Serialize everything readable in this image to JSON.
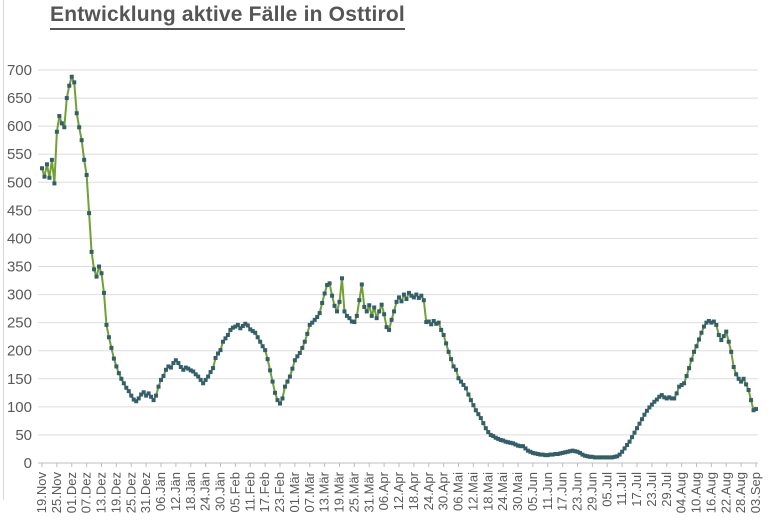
{
  "chart_data": {
    "type": "line",
    "title": "Entwicklung aktive Fälle in Osttirol",
    "series_name": "aktive Fälle",
    "x_unit": "day",
    "x_first_date": "19.Nov",
    "x_last_date": "03.Sep",
    "x_label_every_n_points": 6,
    "x_labels": [
      "19.Nov",
      "25.Nov",
      "01.Dez",
      "07.Dez",
      "13.Dez",
      "19.Dez",
      "25.Dez",
      "31.Dez",
      "06.Jän",
      "12.Jän",
      "18.Jän",
      "24.Jän",
      "30.Jän",
      "05.Feb",
      "11.Feb",
      "17.Feb",
      "23.Feb",
      "01.Mär",
      "07.Mär",
      "13.Mär",
      "19.Mär",
      "25.Mär",
      "31.Mär",
      "06.Apr",
      "12.Apr",
      "18.Apr",
      "24.Apr",
      "30.Apr",
      "06.Mai",
      "12.Mai",
      "18.Mai",
      "24.Mai",
      "30.Mai",
      "05.Jun",
      "11.Jun",
      "17.Jun",
      "23.Jun",
      "29.Jun",
      "05.Jul",
      "11.Jul",
      "17.Jul",
      "23.Jul",
      "29.Jul",
      "04.Aug",
      "10.Aug",
      "16.Aug",
      "22.Aug",
      "28.Aug",
      "03.Sep"
    ],
    "yticks": [
      0,
      50,
      100,
      150,
      200,
      250,
      300,
      350,
      400,
      450,
      500,
      550,
      600,
      650,
      700
    ],
    "ylim": [
      0,
      700
    ],
    "grid": true,
    "legend": false,
    "values": [
      525,
      510,
      532,
      508,
      540,
      498,
      590,
      618,
      605,
      598,
      650,
      672,
      688,
      678,
      623,
      598,
      575,
      540,
      513,
      445,
      376,
      345,
      332,
      350,
      338,
      303,
      246,
      224,
      205,
      186,
      172,
      160,
      150,
      142,
      134,
      128,
      120,
      113,
      110,
      115,
      122,
      126,
      120,
      124,
      118,
      112,
      120,
      136,
      148,
      155,
      166,
      172,
      170,
      178,
      183,
      178,
      171,
      166,
      170,
      168,
      165,
      163,
      158,
      154,
      148,
      142,
      148,
      154,
      162,
      169,
      187,
      195,
      201,
      216,
      222,
      228,
      237,
      241,
      243,
      246,
      240,
      244,
      248,
      245,
      238,
      235,
      232,
      224,
      216,
      208,
      201,
      185,
      165,
      145,
      125,
      112,
      106,
      115,
      136,
      145,
      154,
      168,
      183,
      190,
      196,
      205,
      216,
      230,
      246,
      250,
      255,
      260,
      267,
      285,
      302,
      317,
      320,
      298,
      280,
      270,
      287,
      329,
      270,
      262,
      258,
      252,
      251,
      262,
      290,
      318,
      278,
      270,
      281,
      262,
      277,
      258,
      270,
      282,
      265,
      242,
      237,
      255,
      270,
      287,
      295,
      288,
      300,
      292,
      303,
      298,
      295,
      300,
      294,
      298,
      290,
      251,
      252,
      247,
      253,
      248,
      250,
      237,
      228,
      213,
      198,
      185,
      172,
      166,
      151,
      145,
      139,
      133,
      122,
      112,
      103,
      94,
      87,
      80,
      71,
      62,
      55,
      50,
      48,
      45,
      43,
      41,
      40,
      38,
      37,
      36,
      35,
      33,
      31,
      30,
      30,
      26,
      22,
      20,
      18,
      17,
      16,
      15,
      15,
      14,
      14,
      15,
      15,
      16,
      16,
      17,
      18,
      19,
      20,
      21,
      22,
      21,
      20,
      18,
      15,
      13,
      12,
      11,
      11,
      10,
      10,
      10,
      10,
      10,
      10,
      10,
      10,
      11,
      12,
      15,
      20,
      26,
      32,
      38,
      46,
      54,
      62,
      70,
      78,
      86,
      93,
      99,
      104,
      109,
      113,
      118,
      121,
      117,
      115,
      117,
      115,
      115,
      124,
      136,
      139,
      142,
      155,
      169,
      184,
      198,
      208,
      220,
      232,
      243,
      250,
      253,
      250,
      252,
      246,
      228,
      219,
      226,
      234,
      216,
      198,
      171,
      158,
      150,
      145,
      150,
      140,
      130,
      112,
      94,
      96
    ]
  },
  "colors": {
    "line": "#71A033",
    "marker": "#335F6A",
    "grid": "#DEDEDE",
    "axis": "#BFBFBF",
    "tick": "#BFBFBF",
    "axis_text": "#595959",
    "title_text": "#555555"
  }
}
